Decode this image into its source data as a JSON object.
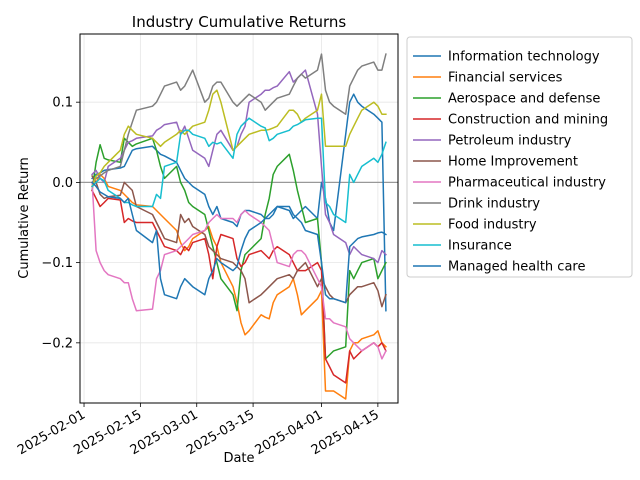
{
  "chart_data": {
    "type": "line",
    "title": "Industry Cumulative Returns",
    "xlabel": "Date",
    "ylabel": "Cumulative Return",
    "xlim": [
      "2025-01-31",
      "2025-04-20"
    ],
    "ylim": [
      -0.275,
      0.185
    ],
    "xticks": [
      "2025-02-01",
      "2025-02-15",
      "2025-03-01",
      "2025-03-15",
      "2025-04-01",
      "2025-04-15"
    ],
    "yticks": [
      -0.2,
      -0.1,
      0.0,
      0.1
    ],
    "ytick_labels": [
      "−0.2",
      "−0.1",
      "0.0",
      "0.1"
    ],
    "grid": true,
    "baseline": 0.0,
    "legend_position": "outside-right",
    "x": [
      "2025-02-03",
      "2025-02-04",
      "2025-02-05",
      "2025-02-06",
      "2025-02-07",
      "2025-02-10",
      "2025-02-11",
      "2025-02-12",
      "2025-02-13",
      "2025-02-14",
      "2025-02-18",
      "2025-02-19",
      "2025-02-20",
      "2025-02-21",
      "2025-02-24",
      "2025-02-25",
      "2025-02-26",
      "2025-02-27",
      "2025-02-28",
      "2025-03-03",
      "2025-03-04",
      "2025-03-05",
      "2025-03-06",
      "2025-03-07",
      "2025-03-10",
      "2025-03-11",
      "2025-03-12",
      "2025-03-13",
      "2025-03-14",
      "2025-03-17",
      "2025-03-18",
      "2025-03-19",
      "2025-03-20",
      "2025-03-21",
      "2025-03-24",
      "2025-03-25",
      "2025-03-26",
      "2025-03-27",
      "2025-03-28",
      "2025-03-31",
      "2025-04-01",
      "2025-04-02",
      "2025-04-03",
      "2025-04-04",
      "2025-04-07",
      "2025-04-08",
      "2025-04-09",
      "2025-04-10",
      "2025-04-11",
      "2025-04-14",
      "2025-04-15",
      "2025-04-16",
      "2025-04-17"
    ],
    "series": [
      {
        "name": "Information technology",
        "color": "#1f77b4",
        "values": [
          0.005,
          0.01,
          0.012,
          0.015,
          0.016,
          0.018,
          0.02,
          0.03,
          0.04,
          0.042,
          0.045,
          0.04,
          0.035,
          0.033,
          0.025,
          0.015,
          0.005,
          0.0,
          -0.005,
          -0.015,
          -0.03,
          -0.04,
          -0.03,
          -0.045,
          -0.05,
          -0.055,
          -0.04,
          -0.035,
          -0.035,
          -0.04,
          -0.045,
          -0.045,
          -0.04,
          -0.03,
          -0.035,
          -0.045,
          -0.04,
          -0.035,
          -0.03,
          -0.045,
          0.0,
          -0.02,
          -0.05,
          -0.06,
          0.06,
          0.1,
          0.11,
          0.1,
          0.095,
          0.085,
          0.08,
          0.075,
          -0.16
        ]
      },
      {
        "name": "Financial services",
        "color": "#ff7f0e",
        "values": [
          -0.005,
          0.0,
          0.01,
          0.005,
          -0.005,
          -0.01,
          -0.015,
          -0.02,
          -0.025,
          -0.028,
          -0.03,
          -0.035,
          -0.04,
          -0.045,
          -0.06,
          -0.075,
          -0.085,
          -0.08,
          -0.07,
          -0.06,
          -0.055,
          -0.07,
          -0.08,
          -0.1,
          -0.13,
          -0.15,
          -0.175,
          -0.19,
          -0.185,
          -0.165,
          -0.168,
          -0.17,
          -0.15,
          -0.14,
          -0.13,
          -0.12,
          -0.14,
          -0.165,
          -0.16,
          -0.145,
          -0.135,
          -0.26,
          -0.26,
          -0.26,
          -0.27,
          -0.21,
          -0.2,
          -0.2,
          -0.195,
          -0.19,
          -0.185,
          -0.2,
          -0.205
        ]
      },
      {
        "name": "Aerospace and defense",
        "color": "#2ca02c",
        "values": [
          -0.01,
          0.025,
          0.047,
          0.03,
          0.028,
          0.025,
          0.055,
          0.05,
          0.045,
          0.048,
          0.055,
          0.04,
          0.02,
          0.005,
          0.02,
          0.0,
          -0.01,
          -0.025,
          -0.03,
          -0.04,
          -0.06,
          -0.08,
          -0.1,
          -0.12,
          -0.14,
          -0.16,
          -0.11,
          -0.09,
          -0.085,
          -0.07,
          -0.04,
          -0.02,
          0.01,
          0.02,
          0.035,
          0.015,
          -0.01,
          -0.03,
          -0.05,
          -0.045,
          -0.1,
          -0.22,
          -0.215,
          -0.21,
          -0.205,
          -0.11,
          -0.12,
          -0.11,
          -0.1,
          -0.095,
          -0.12,
          -0.11,
          -0.1
        ]
      },
      {
        "name": "Construction and mining",
        "color": "#d62728",
        "values": [
          -0.01,
          -0.02,
          -0.03,
          -0.025,
          -0.02,
          -0.022,
          -0.05,
          -0.045,
          -0.048,
          -0.05,
          -0.05,
          -0.06,
          -0.07,
          -0.08,
          -0.085,
          -0.09,
          -0.08,
          -0.085,
          -0.075,
          -0.07,
          -0.09,
          -0.12,
          -0.08,
          -0.065,
          -0.07,
          -0.095,
          -0.105,
          -0.1,
          -0.09,
          -0.085,
          -0.09,
          -0.095,
          -0.085,
          -0.08,
          -0.09,
          -0.1,
          -0.11,
          -0.11,
          -0.11,
          -0.1,
          -0.11,
          -0.22,
          -0.23,
          -0.24,
          -0.25,
          -0.21,
          -0.22,
          -0.215,
          -0.21,
          -0.2,
          -0.205,
          -0.2,
          -0.21
        ]
      },
      {
        "name": "Petroleum industry",
        "color": "#9467bd",
        "values": [
          0.01,
          0.015,
          0.005,
          0.0,
          0.02,
          0.03,
          0.04,
          0.05,
          0.052,
          0.055,
          0.058,
          0.065,
          0.068,
          0.072,
          0.075,
          0.06,
          0.07,
          0.055,
          0.04,
          0.03,
          0.02,
          0.04,
          0.06,
          0.065,
          0.04,
          0.045,
          0.06,
          0.07,
          0.1,
          0.11,
          0.115,
          0.115,
          0.118,
          0.12,
          0.138,
          0.125,
          0.13,
          0.135,
          0.14,
          0.085,
          0.02,
          -0.04,
          -0.05,
          -0.065,
          -0.075,
          -0.09,
          -0.08,
          -0.085,
          -0.09,
          -0.095,
          -0.1,
          -0.085,
          -0.09
        ]
      },
      {
        "name": "Home Improvement",
        "color": "#8c564b",
        "values": [
          0.008,
          0.0,
          -0.015,
          -0.02,
          -0.018,
          -0.016,
          0.0,
          -0.005,
          -0.01,
          -0.03,
          -0.04,
          -0.05,
          -0.06,
          -0.07,
          -0.075,
          -0.04,
          -0.05,
          -0.045,
          -0.055,
          -0.065,
          -0.08,
          -0.085,
          -0.09,
          -0.095,
          -0.1,
          -0.105,
          -0.11,
          -0.12,
          -0.15,
          -0.14,
          -0.135,
          -0.13,
          -0.125,
          -0.12,
          -0.115,
          -0.12,
          -0.11,
          -0.105,
          -0.1,
          -0.13,
          -0.12,
          -0.13,
          -0.14,
          -0.145,
          -0.15,
          -0.14,
          -0.135,
          -0.13,
          -0.13,
          -0.125,
          -0.135,
          -0.155,
          -0.14
        ]
      },
      {
        "name": "Pharmaceutical industry",
        "color": "#e377c2",
        "values": [
          0.0,
          -0.085,
          -0.1,
          -0.11,
          -0.115,
          -0.12,
          -0.125,
          -0.125,
          -0.145,
          -0.16,
          -0.158,
          -0.12,
          -0.11,
          -0.09,
          -0.085,
          -0.08,
          -0.075,
          -0.07,
          -0.065,
          -0.06,
          -0.05,
          -0.045,
          -0.04,
          -0.045,
          -0.045,
          -0.05,
          -0.04,
          -0.035,
          -0.04,
          -0.05,
          -0.055,
          -0.06,
          -0.08,
          -0.1,
          -0.105,
          -0.09,
          -0.085,
          -0.085,
          -0.09,
          -0.12,
          -0.13,
          -0.17,
          -0.17,
          -0.175,
          -0.18,
          -0.195,
          -0.2,
          -0.205,
          -0.21,
          -0.2,
          -0.205,
          -0.22,
          -0.21
        ]
      },
      {
        "name": "Drink industry",
        "color": "#7f7f7f",
        "values": [
          0.0,
          0.005,
          0.008,
          0.012,
          0.015,
          0.02,
          0.04,
          0.06,
          0.075,
          0.09,
          0.095,
          0.1,
          0.11,
          0.12,
          0.125,
          0.115,
          0.12,
          0.13,
          0.14,
          0.1,
          0.105,
          0.12,
          0.125,
          0.125,
          0.1,
          0.095,
          0.1,
          0.105,
          0.11,
          0.1,
          0.09,
          0.095,
          0.1,
          0.105,
          0.11,
          0.12,
          0.13,
          0.135,
          0.13,
          0.14,
          0.16,
          0.115,
          0.1,
          0.095,
          0.085,
          0.12,
          0.13,
          0.14,
          0.145,
          0.15,
          0.14,
          0.14,
          0.16
        ]
      },
      {
        "name": "Food industry",
        "color": "#bcbd22",
        "values": [
          -0.005,
          0.008,
          0.012,
          0.02,
          0.025,
          0.04,
          0.06,
          0.07,
          0.065,
          0.06,
          0.055,
          0.05,
          0.045,
          0.05,
          0.06,
          0.065,
          0.06,
          0.065,
          0.07,
          0.075,
          0.09,
          0.11,
          0.115,
          0.1,
          0.04,
          0.045,
          0.05,
          0.055,
          0.06,
          0.065,
          0.065,
          0.066,
          0.068,
          0.07,
          0.09,
          0.09,
          0.085,
          0.075,
          0.08,
          0.09,
          0.11,
          0.045,
          0.045,
          0.045,
          0.045,
          0.06,
          0.07,
          0.08,
          0.09,
          0.1,
          0.095,
          0.085,
          0.085
        ]
      },
      {
        "name": "Insurance",
        "color": "#17becf",
        "values": [
          -0.005,
          0.0,
          0.005,
          0.002,
          -0.01,
          -0.02,
          -0.025,
          -0.025,
          -0.028,
          -0.03,
          -0.03,
          -0.015,
          -0.02,
          0.02,
          0.025,
          0.06,
          0.065,
          0.065,
          0.06,
          0.055,
          0.045,
          0.05,
          0.048,
          0.05,
          0.03,
          0.06,
          0.07,
          0.075,
          0.08,
          0.07,
          0.068,
          0.052,
          0.055,
          0.06,
          0.065,
          0.07,
          0.072,
          0.075,
          0.078,
          0.08,
          0.08,
          -0.025,
          -0.03,
          -0.04,
          -0.05,
          0.01,
          0.0,
          0.01,
          0.02,
          0.03,
          0.025,
          0.035,
          0.05
        ]
      },
      {
        "name": "Managed health care",
        "color": "#1f77b4",
        "values": [
          0.0,
          -0.005,
          -0.012,
          -0.015,
          -0.018,
          -0.02,
          -0.025,
          -0.02,
          -0.04,
          -0.06,
          -0.075,
          -0.06,
          -0.12,
          -0.14,
          -0.145,
          -0.13,
          -0.12,
          -0.125,
          -0.13,
          -0.14,
          -0.12,
          -0.11,
          -0.095,
          -0.1,
          -0.11,
          -0.105,
          -0.085,
          -0.07,
          -0.06,
          -0.05,
          -0.045,
          -0.04,
          -0.035,
          -0.03,
          -0.03,
          -0.04,
          -0.045,
          -0.05,
          -0.06,
          -0.065,
          -0.1,
          -0.14,
          -0.145,
          -0.145,
          -0.15,
          -0.08,
          -0.075,
          -0.07,
          -0.068,
          -0.065,
          -0.063,
          -0.062,
          -0.065
        ]
      }
    ]
  }
}
